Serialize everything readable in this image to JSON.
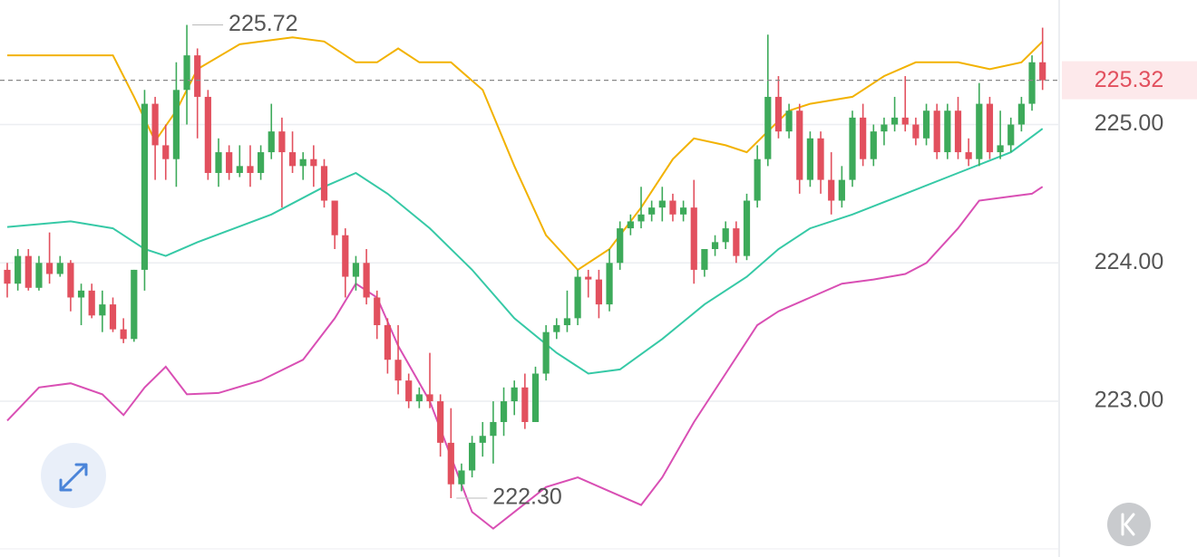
{
  "chart_data": {
    "type": "candlestick",
    "ylim": [
      221.94,
      225.9
    ],
    "yticks": [
      {
        "value": 223,
        "label": "223.00"
      },
      {
        "value": 224,
        "label": "224.00"
      },
      {
        "value": 225,
        "label": "225.00"
      }
    ],
    "grid": true,
    "up_color": "#3daa5a",
    "down_color": "#e2505e",
    "open": [
      223.95,
      223.85,
      224.05,
      223.82,
      224.0,
      223.92,
      224.0,
      223.75,
      223.8,
      223.62,
      223.7,
      223.52,
      223.45,
      223.95,
      225.15,
      224.85,
      224.75,
      225.25,
      225.5,
      225.2,
      224.65,
      224.8,
      224.65,
      224.7,
      224.65,
      224.8,
      224.95,
      224.8,
      224.7,
      224.75,
      224.7,
      224.45,
      224.2,
      223.9,
      224.0,
      223.75,
      223.55,
      223.3,
      223.15,
      223.0,
      223.05,
      223.0,
      222.7,
      222.4,
      222.5,
      222.7,
      222.75,
      222.85,
      223.0,
      223.1,
      222.85,
      223.2,
      223.5,
      223.55,
      223.6,
      223.9,
      223.88,
      223.7,
      224.0,
      224.25,
      224.3,
      224.35,
      224.4,
      224.45,
      224.35,
      224.4,
      223.95,
      224.1,
      224.15,
      224.25,
      224.05,
      224.45,
      224.75,
      225.2,
      224.95,
      225.1,
      224.6,
      224.9,
      224.6,
      224.45,
      224.6,
      225.05,
      224.75,
      224.95,
      225.0,
      225.05,
      225.0,
      224.9,
      225.1,
      224.8,
      225.1,
      224.8,
      224.75,
      225.15,
      224.8,
      224.85,
      225.0,
      225.15,
      225.45
    ],
    "high": [
      224.0,
      224.1,
      224.1,
      224.05,
      224.22,
      224.05,
      224.02,
      223.85,
      223.85,
      223.8,
      223.75,
      223.6,
      223.95,
      225.25,
      225.2,
      225.0,
      225.45,
      225.72,
      225.55,
      225.25,
      224.9,
      224.85,
      224.85,
      224.85,
      224.85,
      225.15,
      225.05,
      224.95,
      224.8,
      224.85,
      224.75,
      224.45,
      224.25,
      224.05,
      224.1,
      223.8,
      223.6,
      223.55,
      223.2,
      223.1,
      223.35,
      223.05,
      222.95,
      222.55,
      222.75,
      222.85,
      223.0,
      223.1,
      223.15,
      223.2,
      223.25,
      223.55,
      223.6,
      223.8,
      223.95,
      223.95,
      223.95,
      224.1,
      224.3,
      224.35,
      224.55,
      224.45,
      224.55,
      224.5,
      224.45,
      224.6,
      224.1,
      224.2,
      224.3,
      224.3,
      224.5,
      224.85,
      225.65,
      225.35,
      225.15,
      225.15,
      224.95,
      224.95,
      224.8,
      224.7,
      225.1,
      225.15,
      225.0,
      225.05,
      225.2,
      225.35,
      225.05,
      225.15,
      225.15,
      225.15,
      225.2,
      224.9,
      225.3,
      225.2,
      225.1,
      225.05,
      225.2,
      225.5,
      225.7
    ],
    "low": [
      223.75,
      223.8,
      223.8,
      223.8,
      223.85,
      223.9,
      223.65,
      223.55,
      223.6,
      223.5,
      223.5,
      223.42,
      223.43,
      223.8,
      224.6,
      224.6,
      224.55,
      225.0,
      224.9,
      224.6,
      224.55,
      224.6,
      224.62,
      224.55,
      224.6,
      224.75,
      224.4,
      224.65,
      224.6,
      224.55,
      224.4,
      224.1,
      223.75,
      223.8,
      223.7,
      223.45,
      223.2,
      223.05,
      222.95,
      222.95,
      222.95,
      222.6,
      222.3,
      222.35,
      222.45,
      222.6,
      222.55,
      222.75,
      222.9,
      222.8,
      222.85,
      223.15,
      223.45,
      223.5,
      223.55,
      223.75,
      223.6,
      223.65,
      223.95,
      224.2,
      224.25,
      224.3,
      224.3,
      224.3,
      224.3,
      223.85,
      223.9,
      224.05,
      224.1,
      224.0,
      224.02,
      224.4,
      224.7,
      224.9,
      224.9,
      224.5,
      224.55,
      224.5,
      224.35,
      224.4,
      224.55,
      224.7,
      224.7,
      224.85,
      224.95,
      224.95,
      224.85,
      224.85,
      224.75,
      224.75,
      224.75,
      224.7,
      224.7,
      224.75,
      224.75,
      224.8,
      224.95,
      225.1,
      225.25
    ],
    "close": [
      223.85,
      224.05,
      223.82,
      224.0,
      223.92,
      224.0,
      223.75,
      223.8,
      223.62,
      223.7,
      223.52,
      223.45,
      223.95,
      225.15,
      224.85,
      224.75,
      225.25,
      225.5,
      225.2,
      224.65,
      224.8,
      224.65,
      224.7,
      224.65,
      224.8,
      224.95,
      224.8,
      224.7,
      224.75,
      224.7,
      224.45,
      224.2,
      223.9,
      224.0,
      223.75,
      223.55,
      223.3,
      223.15,
      223.0,
      223.05,
      223.0,
      222.7,
      222.4,
      222.5,
      222.7,
      222.75,
      222.85,
      223.0,
      223.1,
      222.85,
      223.2,
      223.5,
      223.55,
      223.6,
      223.9,
      223.88,
      223.7,
      224.0,
      224.25,
      224.3,
      224.35,
      224.4,
      224.45,
      224.35,
      224.4,
      223.95,
      224.1,
      224.15,
      224.25,
      224.05,
      224.45,
      224.75,
      225.2,
      224.95,
      225.1,
      224.6,
      224.9,
      224.6,
      224.45,
      224.6,
      225.05,
      224.75,
      224.95,
      225.0,
      225.05,
      225.0,
      224.9,
      225.1,
      224.8,
      225.1,
      224.8,
      224.75,
      225.15,
      224.8,
      224.85,
      225.0,
      225.15,
      225.45,
      225.32
    ],
    "series": [
      {
        "color": "#f2b200",
        "x": [
          0,
          10,
          12,
          14,
          16,
          18,
          22,
          27,
          30,
          33,
          35,
          37,
          39,
          42,
          45,
          48,
          51,
          54,
          57,
          60,
          63,
          65,
          68,
          70,
          72,
          74,
          76,
          80,
          83,
          86,
          90,
          93,
          96,
          98
        ],
        "values": [
          225.5,
          225.5,
          225.2,
          224.88,
          225.1,
          225.4,
          225.58,
          225.63,
          225.6,
          225.45,
          225.45,
          225.55,
          225.45,
          225.45,
          225.25,
          224.7,
          224.2,
          223.95,
          224.1,
          224.4,
          224.75,
          224.9,
          224.85,
          224.8,
          224.95,
          225.1,
          225.15,
          225.2,
          225.35,
          225.45,
          225.45,
          225.4,
          225.45,
          225.6
        ]
      },
      {
        "color": "#36c9a6",
        "x": [
          0,
          6,
          10,
          13,
          15,
          18,
          25,
          30,
          33,
          36,
          40,
          44,
          48,
          52,
          55,
          58,
          62,
          66,
          70,
          73,
          76,
          80,
          85,
          90,
          95,
          98
        ],
        "values": [
          224.26,
          224.3,
          224.25,
          224.1,
          224.05,
          224.15,
          224.35,
          224.55,
          224.65,
          224.5,
          224.25,
          223.95,
          223.6,
          223.35,
          223.2,
          223.23,
          223.45,
          223.7,
          223.9,
          224.1,
          224.25,
          224.35,
          224.5,
          224.65,
          224.8,
          224.97
        ]
      },
      {
        "color": "#d94fb4",
        "x": [
          0,
          3,
          6,
          9,
          11,
          13,
          15,
          17,
          20,
          24,
          28,
          31,
          33,
          35,
          37,
          40,
          42,
          44,
          46,
          48,
          51,
          54,
          57,
          60,
          62,
          65,
          68,
          71,
          73,
          76,
          79,
          82,
          85,
          87,
          90,
          92,
          95,
          97,
          98
        ],
        "values": [
          222.86,
          223.1,
          223.13,
          223.05,
          222.9,
          223.1,
          223.25,
          223.05,
          223.06,
          223.15,
          223.3,
          223.6,
          223.85,
          223.75,
          223.4,
          223.0,
          222.6,
          222.2,
          222.08,
          222.2,
          222.38,
          222.45,
          222.35,
          222.25,
          222.45,
          222.85,
          223.2,
          223.55,
          223.65,
          223.75,
          223.85,
          223.88,
          223.92,
          224.0,
          224.25,
          224.45,
          224.48,
          224.5,
          224.55
        ]
      }
    ],
    "annotations": [
      {
        "index": 17,
        "value": 225.72
      },
      {
        "index": 42,
        "value": 222.3,
        "label": "222.30"
      }
    ],
    "last_price": {
      "value": 225.32,
      "label": "225.32",
      "color": "#e2505e"
    }
  }
}
